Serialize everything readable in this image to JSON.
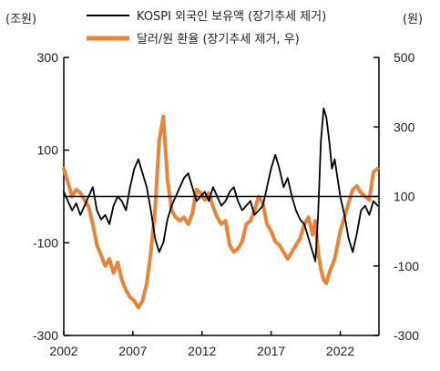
{
  "chart_data": {
    "type": "line",
    "left_axis_unit": "(조원)",
    "right_axis_unit": "(원)",
    "left_ylim": [
      -300,
      300
    ],
    "right_ylim": [
      -300,
      500
    ],
    "left_ticks": [
      300,
      100,
      -100,
      -300
    ],
    "left_tick_labels": [
      "300",
      "100",
      "-100",
      "-300"
    ],
    "right_ticks": [
      500,
      300,
      100,
      -100,
      -300
    ],
    "right_tick_labels": [
      "500",
      "300",
      "100",
      "-100",
      "-300"
    ],
    "x_ticks": [
      2002,
      2007,
      2012,
      2017,
      2022
    ],
    "x_tick_labels": [
      "2002",
      "2007",
      "2012",
      "2017",
      "2022"
    ],
    "xlim": [
      2002,
      2024.8
    ],
    "zero_line": true,
    "legend_position": "top",
    "series": [
      {
        "name": "KOSPI 외국인 보유액 (장기추세 제거)",
        "axis": "left",
        "color": "#000000",
        "x": [
          2002.0,
          2002.3,
          2002.6,
          2002.9,
          2003.2,
          2003.5,
          2003.8,
          2004.1,
          2004.4,
          2004.7,
          2005.0,
          2005.3,
          2005.6,
          2005.9,
          2006.2,
          2006.5,
          2006.8,
          2007.1,
          2007.4,
          2007.7,
          2008.0,
          2008.3,
          2008.6,
          2008.9,
          2009.2,
          2009.5,
          2009.8,
          2010.1,
          2010.4,
          2010.7,
          2011.0,
          2011.3,
          2011.6,
          2011.9,
          2012.2,
          2012.5,
          2012.8,
          2013.1,
          2013.4,
          2013.7,
          2014.0,
          2014.3,
          2014.6,
          2014.9,
          2015.2,
          2015.5,
          2015.8,
          2016.1,
          2016.4,
          2016.7,
          2017.0,
          2017.3,
          2017.6,
          2017.9,
          2018.2,
          2018.5,
          2018.8,
          2019.1,
          2019.4,
          2019.7,
          2020.0,
          2020.2,
          2020.4,
          2020.6,
          2020.8,
          2021.0,
          2021.2,
          2021.4,
          2021.6,
          2021.8,
          2022.0,
          2022.3,
          2022.6,
          2022.9,
          2023.2,
          2023.5,
          2023.8,
          2024.1,
          2024.4,
          2024.7
        ],
        "values": [
          10,
          -10,
          -30,
          -15,
          -40,
          -20,
          0,
          20,
          -30,
          -50,
          -40,
          -60,
          -20,
          0,
          -10,
          -30,
          20,
          60,
          80,
          50,
          20,
          -30,
          -90,
          -120,
          -100,
          -50,
          -20,
          0,
          20,
          40,
          50,
          20,
          -10,
          0,
          10,
          -10,
          20,
          0,
          -20,
          -10,
          10,
          20,
          -10,
          -30,
          -20,
          -10,
          -40,
          -30,
          -20,
          20,
          60,
          90,
          60,
          20,
          40,
          0,
          -30,
          -50,
          -60,
          -90,
          -120,
          -140,
          -40,
          120,
          190,
          170,
          120,
          60,
          80,
          40,
          0,
          -40,
          -90,
          -120,
          -80,
          -30,
          -20,
          -40,
          -10,
          -20
        ]
      },
      {
        "name": "달러/원 환율 (장기추세 제거, 우)",
        "axis": "right",
        "color": "#e8833a",
        "x": [
          2002.0,
          2002.3,
          2002.6,
          2002.9,
          2003.2,
          2003.5,
          2003.8,
          2004.1,
          2004.4,
          2004.7,
          2005.0,
          2005.3,
          2005.6,
          2005.9,
          2006.2,
          2006.5,
          2006.8,
          2007.1,
          2007.4,
          2007.7,
          2008.0,
          2008.3,
          2008.6,
          2008.9,
          2009.2,
          2009.5,
          2009.8,
          2010.1,
          2010.4,
          2010.7,
          2011.0,
          2011.3,
          2011.6,
          2011.9,
          2012.2,
          2012.5,
          2012.8,
          2013.1,
          2013.4,
          2013.7,
          2014.0,
          2014.3,
          2014.6,
          2014.9,
          2015.2,
          2015.5,
          2015.8,
          2016.1,
          2016.4,
          2016.7,
          2017.0,
          2017.3,
          2017.6,
          2017.9,
          2018.2,
          2018.5,
          2018.8,
          2019.1,
          2019.4,
          2019.7,
          2020.0,
          2020.2,
          2020.4,
          2020.6,
          2020.8,
          2021.0,
          2021.2,
          2021.4,
          2021.6,
          2021.8,
          2022.0,
          2022.3,
          2022.6,
          2022.9,
          2023.2,
          2023.5,
          2023.8,
          2024.1,
          2024.4,
          2024.7
        ],
        "values": [
          180,
          140,
          100,
          120,
          110,
          90,
          70,
          20,
          -40,
          -70,
          -100,
          -80,
          -120,
          -90,
          -140,
          -170,
          -190,
          -200,
          -220,
          -200,
          -150,
          -60,
          60,
          260,
          330,
          150,
          60,
          40,
          30,
          40,
          20,
          50,
          120,
          110,
          90,
          110,
          70,
          40,
          20,
          30,
          -40,
          -60,
          -50,
          -30,
          20,
          30,
          60,
          100,
          80,
          20,
          0,
          -30,
          -40,
          -60,
          -80,
          -60,
          -40,
          -20,
          20,
          40,
          -10,
          30,
          -60,
          -110,
          -140,
          -150,
          -120,
          -100,
          -80,
          -40,
          0,
          40,
          80,
          120,
          130,
          110,
          100,
          90,
          170,
          180
        ]
      }
    ]
  }
}
